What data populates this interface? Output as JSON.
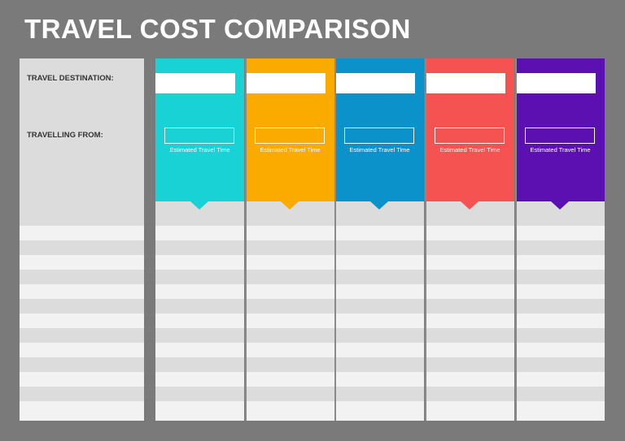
{
  "title": "TRAVEL COST COMPARISON",
  "labels": {
    "destination": "TRAVEL DESTINATION:",
    "from": "TRAVELLING FROM:"
  },
  "columns": [
    {
      "color": "#18d2d6",
      "estimated_label": "Estimated Travel Time"
    },
    {
      "color": "#fbab00",
      "estimated_label": "Estimated Travel Time"
    },
    {
      "color": "#0b92cb",
      "estimated_label": "Estimated Travel Time"
    },
    {
      "color": "#f55252",
      "estimated_label": "Estimated Travel Time"
    },
    {
      "color": "#5c10b2",
      "estimated_label": "Estimated Travel Time"
    }
  ],
  "rows": 13
}
